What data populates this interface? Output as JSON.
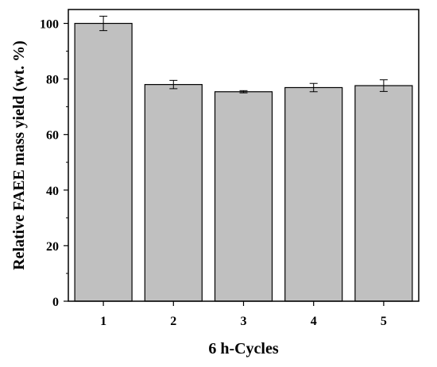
{
  "chart_data": {
    "type": "bar",
    "title": "",
    "xlabel": "6 h-Cycles",
    "ylabel": "Relative FAEE mass yield (wt. %)",
    "categories": [
      "1",
      "2",
      "3",
      "4",
      "5"
    ],
    "values": [
      100.0,
      78.0,
      75.4,
      76.9,
      77.6
    ],
    "errors": [
      2.6,
      1.5,
      0.4,
      1.5,
      2.1
    ],
    "ylim": [
      0,
      105
    ],
    "yticks": [
      0,
      20,
      40,
      60,
      80,
      100
    ],
    "grid": false,
    "legend": false,
    "colors": {
      "bar_fill": "#c0c0c0",
      "bar_stroke": "#000000",
      "axis": "#000000"
    }
  }
}
